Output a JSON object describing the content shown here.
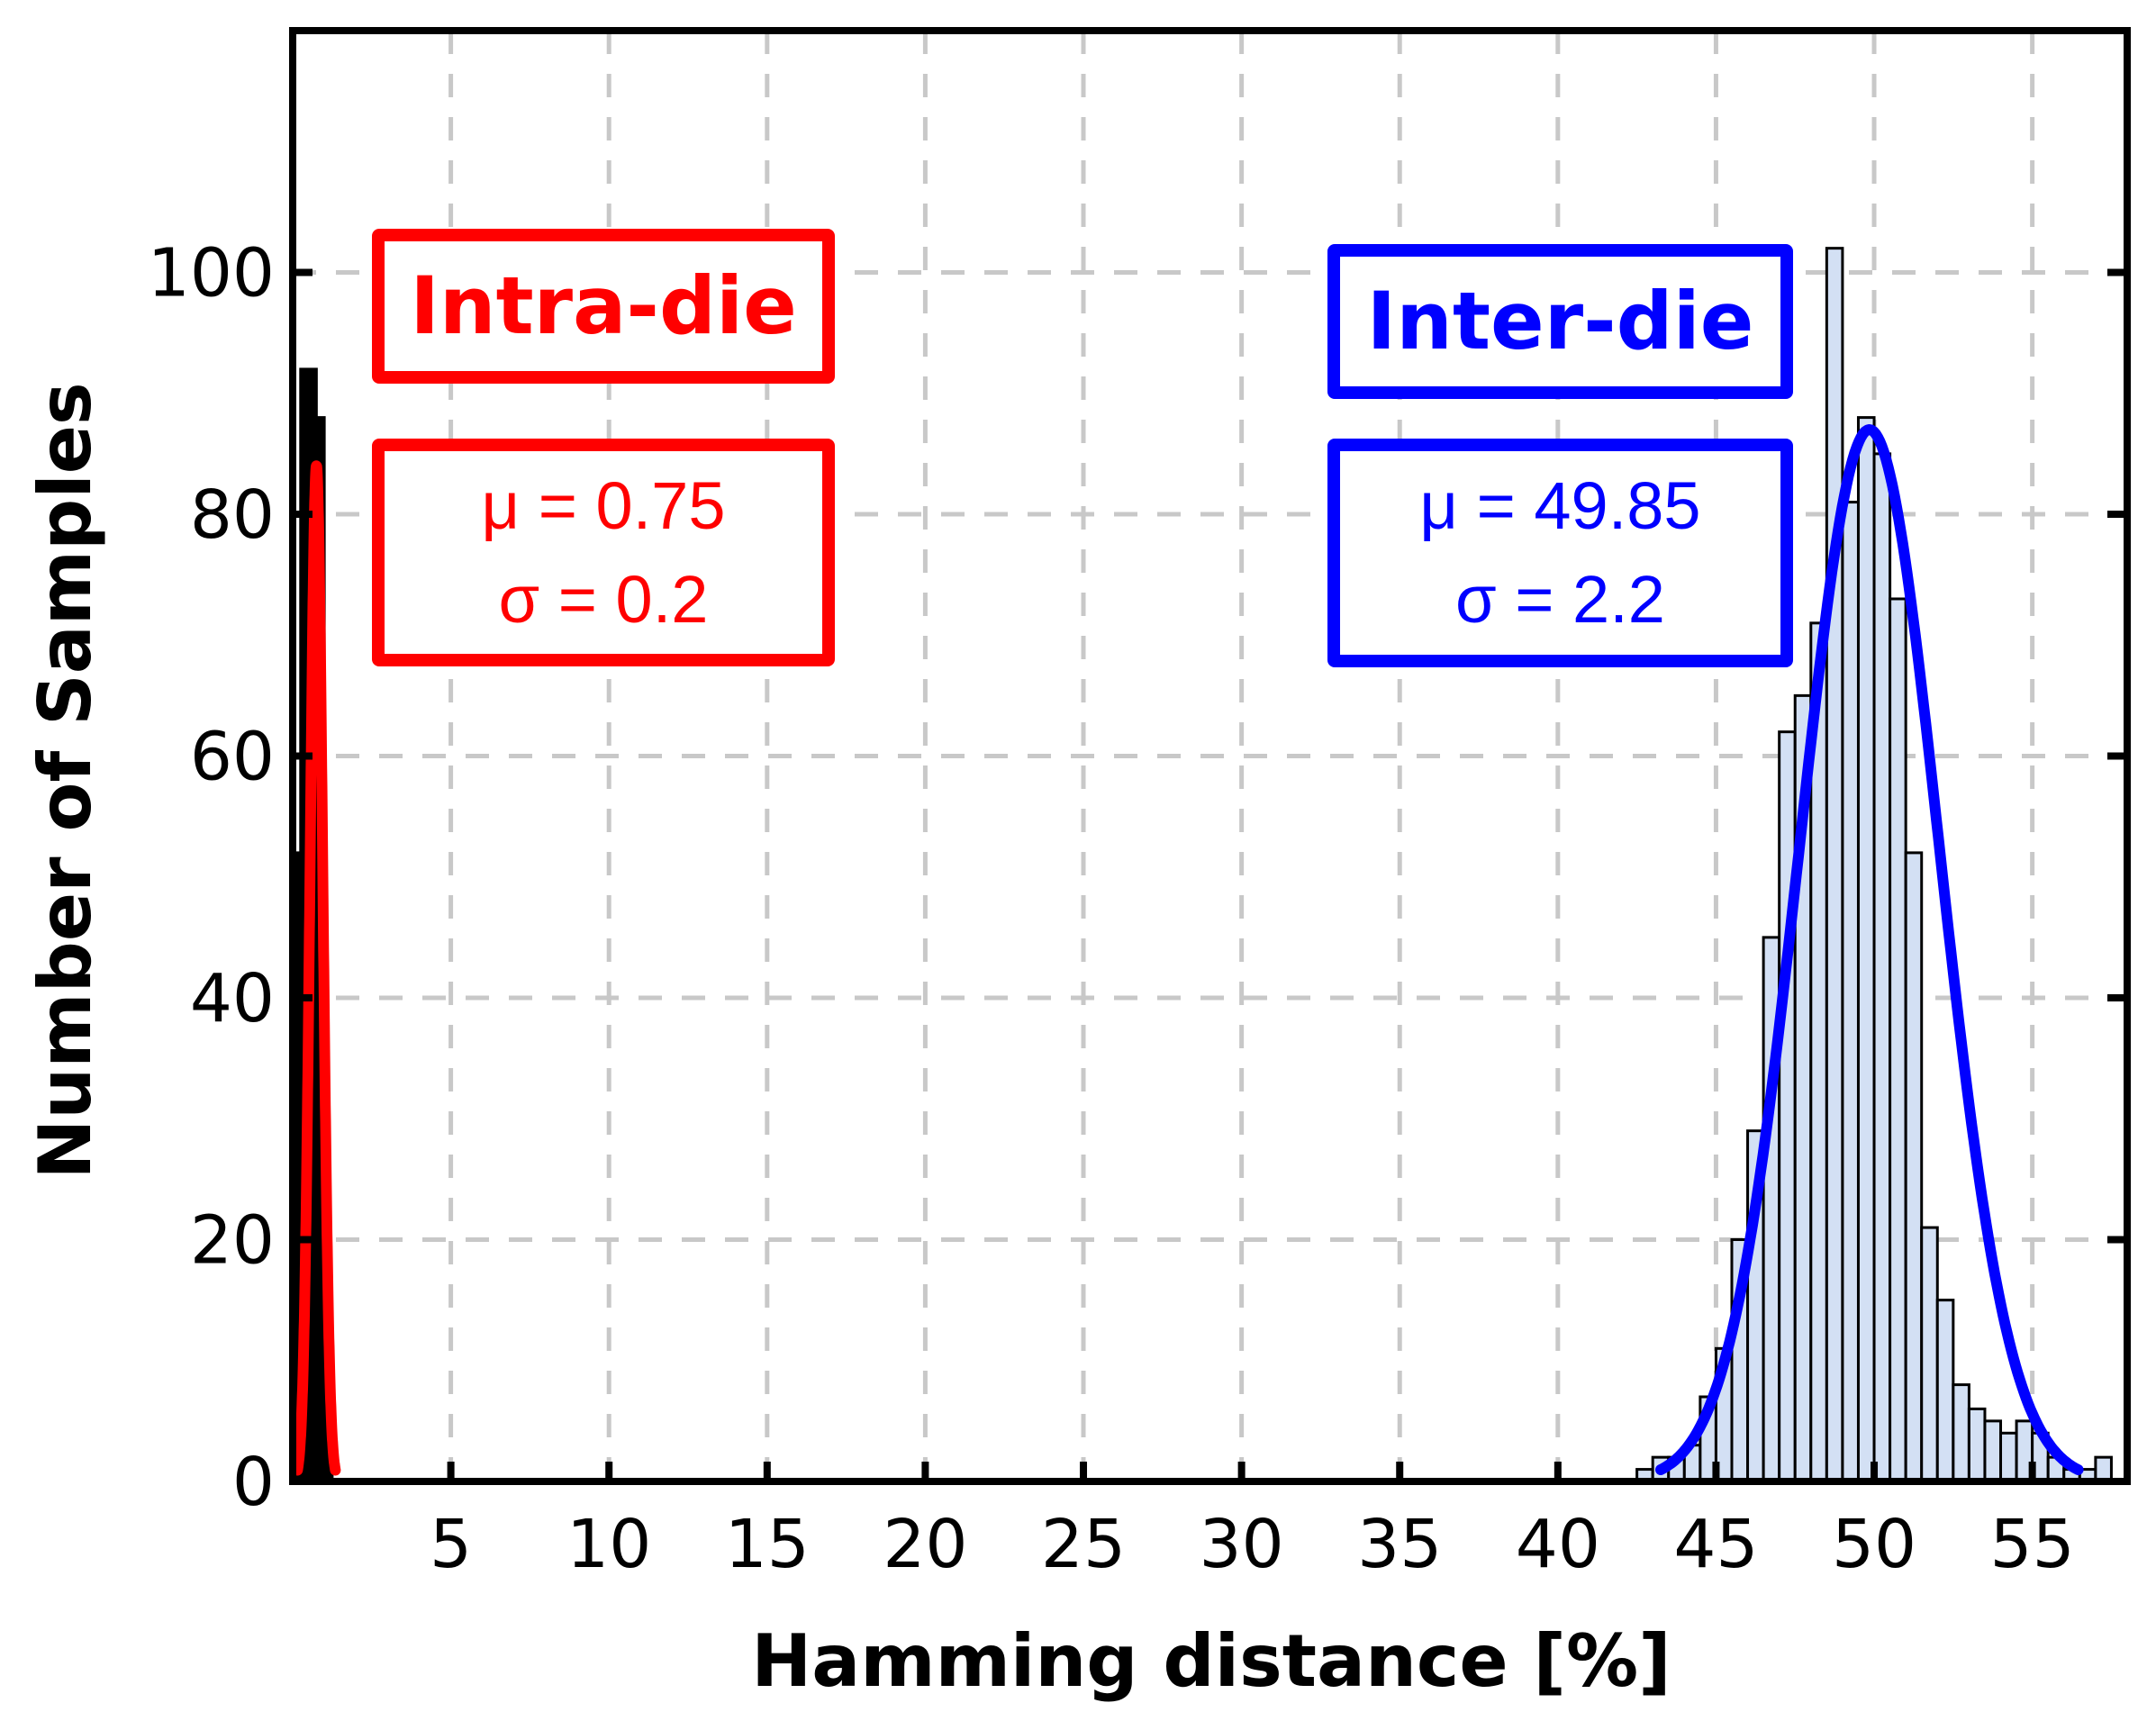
{
  "chart_data": {
    "type": "bar",
    "xlabel": "Hamming distance [%]",
    "ylabel": "Number of Samples",
    "xlim": [
      0,
      58
    ],
    "ylim": [
      0,
      120
    ],
    "xticks": [
      5,
      10,
      15,
      20,
      25,
      30,
      35,
      40,
      45,
      50,
      55
    ],
    "yticks": [
      0,
      20,
      40,
      60,
      80,
      100
    ],
    "grid": true,
    "grid_style": "dashed",
    "bin_width": 0.5,
    "series": [
      {
        "x": [
          0.25,
          0.5,
          0.75,
          1.0
        ],
        "values": [
          52,
          92,
          88,
          8
        ],
        "color": "#000000"
      },
      {
        "x": [
          42.75,
          43.25,
          43.75,
          44.25,
          44.75,
          45.25,
          45.75,
          46.25,
          46.75,
          47.25,
          47.75,
          48.25,
          48.75,
          49.25,
          49.75,
          50.25,
          50.75,
          51.25,
          51.75,
          52.25,
          52.75,
          53.25,
          53.75,
          54.25,
          54.75,
          55.25,
          55.75,
          56.25,
          56.75,
          57.25
        ],
        "values": [
          1,
          2,
          2,
          3,
          7,
          11,
          20,
          29,
          45,
          62,
          65,
          71,
          102,
          81,
          88,
          85,
          73,
          52,
          21,
          15,
          8,
          6,
          5,
          4,
          5,
          4,
          2,
          1,
          1,
          2
        ],
        "color": "#d3e0f4"
      }
    ],
    "fits": [
      {
        "type": "gaussian",
        "mu": 0.75,
        "sigma": 0.2,
        "peak": 84,
        "color": "#ff0000"
      },
      {
        "type": "gaussian",
        "mu": 49.85,
        "sigma": 2.2,
        "peak": 87,
        "color": "#0000ff"
      }
    ],
    "annotations": {
      "intra": {
        "title": "Intra-die",
        "mu": "μ = 0.75",
        "sigma": "σ = 0.2",
        "color": "#ff0000"
      },
      "inter": {
        "title": "Inter-die",
        "mu": "μ = 49.85",
        "sigma": "σ = 2.2",
        "color": "#0000ff"
      }
    }
  }
}
